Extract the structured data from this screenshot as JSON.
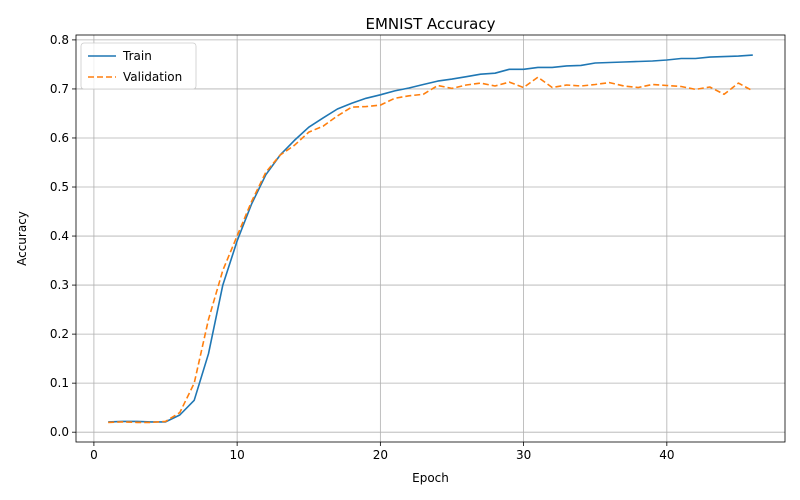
{
  "chart_data": {
    "type": "line",
    "title": "EMNIST Accuracy",
    "xlabel": "Epoch",
    "ylabel": "Accuracy",
    "xlim": [
      -1.25,
      48.25
    ],
    "ylim": [
      -0.02,
      0.81
    ],
    "xticks": [
      0,
      10,
      20,
      30,
      40
    ],
    "yticks": [
      0.0,
      0.1,
      0.2,
      0.3,
      0.4,
      0.5,
      0.6,
      0.7,
      0.8
    ],
    "grid": true,
    "legend_position": "top-left",
    "x": [
      1,
      2,
      3,
      4,
      5,
      6,
      7,
      8,
      9,
      10,
      11,
      12,
      13,
      14,
      15,
      16,
      17,
      18,
      19,
      20,
      21,
      22,
      23,
      24,
      25,
      26,
      27,
      28,
      29,
      30,
      31,
      32,
      33,
      34,
      35,
      36,
      37,
      38,
      39,
      40,
      41,
      42,
      43,
      44,
      45,
      46
    ],
    "series": [
      {
        "name": "Train",
        "color": "#1f77b4",
        "style": "solid",
        "values": [
          0.021,
          0.022,
          0.022,
          0.021,
          0.021,
          0.035,
          0.065,
          0.16,
          0.3,
          0.39,
          0.465,
          0.525,
          0.565,
          0.595,
          0.622,
          0.641,
          0.659,
          0.671,
          0.681,
          0.688,
          0.696,
          0.702,
          0.709,
          0.716,
          0.72,
          0.725,
          0.73,
          0.732,
          0.74,
          0.74,
          0.744,
          0.744,
          0.747,
          0.748,
          0.753,
          0.754,
          0.755,
          0.756,
          0.757,
          0.759,
          0.762,
          0.762,
          0.765,
          0.766,
          0.767,
          0.769
        ]
      },
      {
        "name": "Validation",
        "color": "#ff7f0e",
        "style": "dashed",
        "values": [
          0.02,
          0.021,
          0.02,
          0.02,
          0.022,
          0.04,
          0.1,
          0.23,
          0.33,
          0.4,
          0.47,
          0.53,
          0.565,
          0.585,
          0.612,
          0.624,
          0.645,
          0.663,
          0.664,
          0.667,
          0.681,
          0.686,
          0.689,
          0.707,
          0.701,
          0.708,
          0.712,
          0.706,
          0.714,
          0.703,
          0.724,
          0.703,
          0.708,
          0.706,
          0.709,
          0.713,
          0.706,
          0.703,
          0.709,
          0.707,
          0.705,
          0.699,
          0.704,
          0.689,
          0.712,
          0.696
        ]
      }
    ]
  }
}
